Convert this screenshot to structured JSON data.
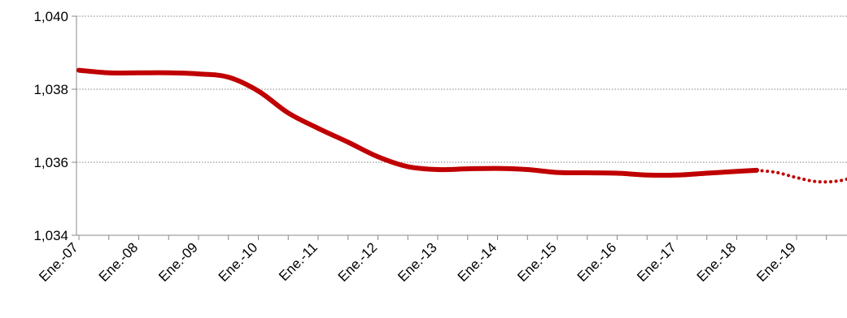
{
  "chart_data": {
    "type": "line",
    "title": "",
    "xlabel": "",
    "ylabel": "",
    "ylim": [
      1.034,
      1.04
    ],
    "y_ticks": [
      {
        "value": 1.034,
        "label": "1,034"
      },
      {
        "value": 1.036,
        "label": "1,036"
      },
      {
        "value": 1.038,
        "label": "1,038"
      },
      {
        "value": 1.04,
        "label": "1,040"
      }
    ],
    "x_ticks": [
      "Ene.-07",
      "Ene.-08",
      "Ene.-09",
      "Ene.-10",
      "Ene.-11",
      "Ene.-12",
      "Ene.-13",
      "Ene.-14",
      "Ene.-15",
      "Ene.-16",
      "Ene.-17",
      "Ene.-18",
      "Ene.-19"
    ],
    "grid": "horizontal dotted",
    "colors": {
      "line": "#c00000",
      "axis": "#888888",
      "grid": "#808080"
    },
    "series": [
      {
        "style": "solid",
        "x": [
          "2007-01",
          "2007-07",
          "2008-01",
          "2008-07",
          "2009-01",
          "2009-07",
          "2010-01",
          "2010-07",
          "2011-01",
          "2011-07",
          "2012-01",
          "2012-07",
          "2013-01",
          "2013-07",
          "2014-01",
          "2014-07",
          "2015-01",
          "2015-07",
          "2016-01",
          "2016-07",
          "2017-01",
          "2017-07",
          "2018-01",
          "2018-05"
        ],
        "y": [
          1.03852,
          1.03845,
          1.03845,
          1.03845,
          1.03842,
          1.03833,
          1.03795,
          1.03735,
          1.03693,
          1.03655,
          1.03615,
          1.03588,
          1.0358,
          1.03582,
          1.03583,
          1.0358,
          1.03572,
          1.03571,
          1.0357,
          1.03565,
          1.03565,
          1.0357,
          1.03575,
          1.03578
        ]
      },
      {
        "style": "dotted",
        "x": [
          "2018-05",
          "2018-09",
          "2019-01",
          "2019-05",
          "2019-09",
          "2019-12"
        ],
        "y": [
          1.03578,
          1.03572,
          1.03558,
          1.03547,
          1.03548,
          1.03557
        ]
      }
    ]
  }
}
